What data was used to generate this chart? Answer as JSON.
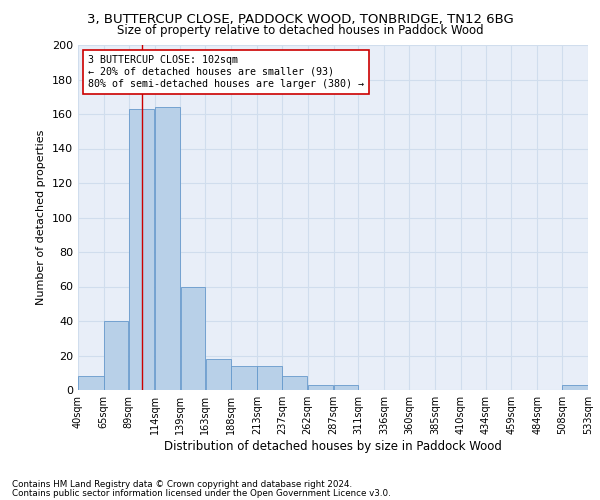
{
  "title": "3, BUTTERCUP CLOSE, PADDOCK WOOD, TONBRIDGE, TN12 6BG",
  "subtitle": "Size of property relative to detached houses in Paddock Wood",
  "xlabel": "Distribution of detached houses by size in Paddock Wood",
  "ylabel": "Number of detached properties",
  "bar_color": "#b8d0e8",
  "bar_edge_color": "#6699cc",
  "grid_color": "#d0dded",
  "background_color": "#e8eef8",
  "annotation_box_color": "#cc0000",
  "property_line_color": "#cc0000",
  "property_value": 102,
  "annotation_text": "3 BUTTERCUP CLOSE: 102sqm\n← 20% of detached houses are smaller (93)\n80% of semi-detached houses are larger (380) →",
  "bins": [
    40,
    65,
    89,
    114,
    139,
    163,
    188,
    213,
    237,
    262,
    287,
    311,
    336,
    360,
    385,
    410,
    434,
    459,
    484,
    508,
    533
  ],
  "bar_heights": [
    8,
    40,
    163,
    164,
    60,
    18,
    14,
    14,
    8,
    3,
    3,
    0,
    0,
    0,
    0,
    0,
    0,
    0,
    0,
    3
  ],
  "ylim": [
    0,
    200
  ],
  "yticks": [
    0,
    20,
    40,
    60,
    80,
    100,
    120,
    140,
    160,
    180,
    200
  ],
  "footnote1": "Contains HM Land Registry data © Crown copyright and database right 2024.",
  "footnote2": "Contains public sector information licensed under the Open Government Licence v3.0."
}
